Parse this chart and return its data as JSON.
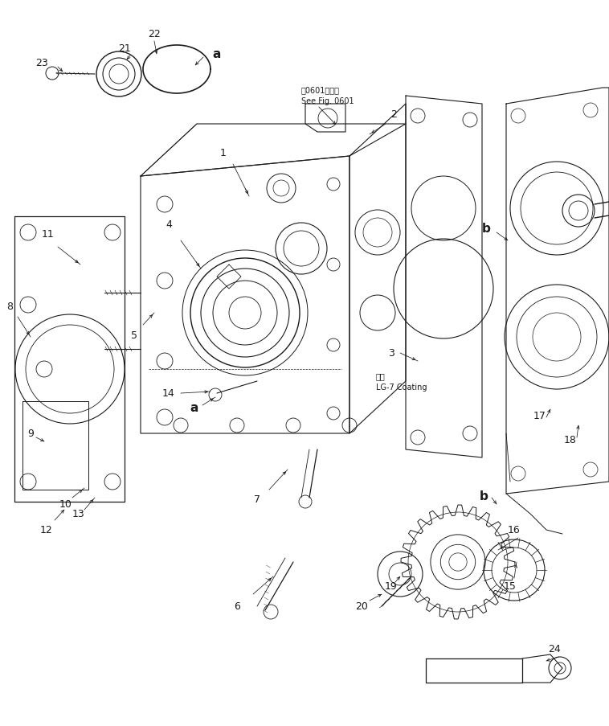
{
  "bg_color": "#ffffff",
  "line_color": "#1a1a1a",
  "fig_width": 7.58,
  "fig_height": 9.04,
  "dpi": 100,
  "note1": "第0601图参照",
  "note2": "See Fig. 0601",
  "note3": "岂布",
  "note4": "LG-7 Coating",
  "label_fontsize": 9,
  "note_fontsize": 7
}
